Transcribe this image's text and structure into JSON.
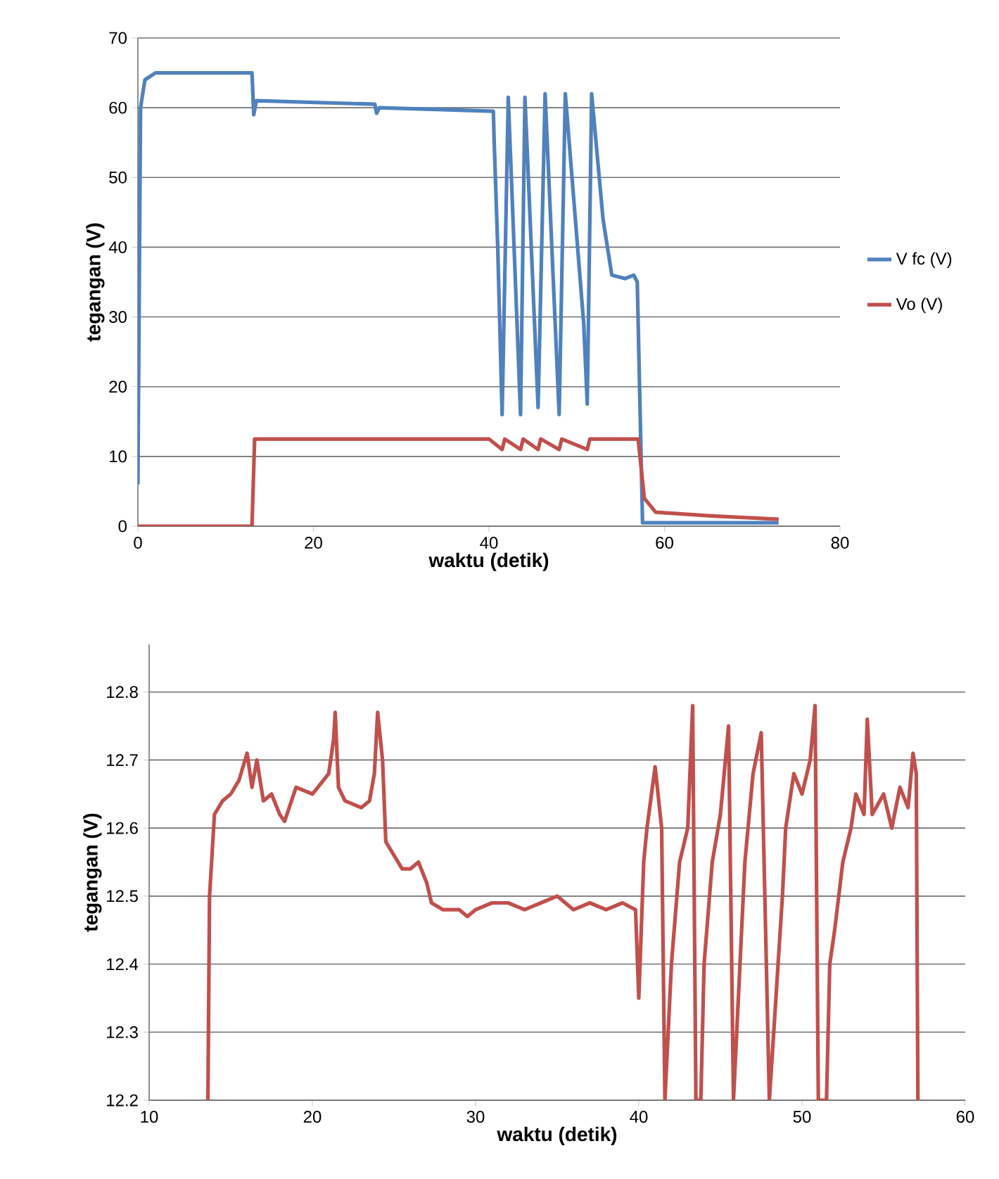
{
  "chart_data": [
    {
      "type": "line",
      "xlabel": "waktu (detik)",
      "ylabel": "tegangan (V)",
      "xlim": [
        0,
        80
      ],
      "ylim": [
        0,
        70
      ],
      "xticks": [
        0,
        20,
        40,
        60,
        80
      ],
      "yticks": [
        0,
        10,
        20,
        30,
        40,
        50,
        60,
        70
      ],
      "grid": "y",
      "legend": "right",
      "series": [
        {
          "name": "V fc (V)",
          "color": "#4f81bd",
          "x": [
            0,
            0.3,
            0.8,
            2,
            13,
            13.2,
            13.5,
            27,
            27.2,
            27.5,
            40.5,
            40.6,
            41,
            41.5,
            42.2,
            43.6,
            44.1,
            45.6,
            46.4,
            48.0,
            48.7,
            50.8,
            51.2,
            51.7,
            53,
            54,
            55.5,
            56.5,
            56.9,
            57.5,
            73
          ],
          "values": [
            6,
            60,
            64,
            65,
            65,
            59,
            61,
            60.5,
            59.2,
            60,
            59.5,
            55,
            40,
            16,
            61.5,
            16,
            61.5,
            17,
            62,
            16,
            62,
            29,
            17.5,
            62,
            44,
            36,
            35.5,
            36,
            35,
            0.5,
            0.5
          ]
        },
        {
          "name": "Vo (V)",
          "color": "#c0504d",
          "x": [
            0,
            13,
            13.3,
            40,
            41.5,
            41.8,
            43.6,
            43.9,
            45.6,
            45.9,
            48,
            48.3,
            51.2,
            51.5,
            57,
            57.7,
            59,
            65,
            73
          ],
          "values": [
            0,
            0,
            12.5,
            12.5,
            11,
            12.5,
            11,
            12.5,
            11,
            12.5,
            11,
            12.5,
            11,
            12.5,
            12.5,
            4,
            2,
            1.5,
            1
          ]
        }
      ]
    },
    {
      "type": "line",
      "xlabel": "waktu (detik)",
      "ylabel": "tegangan (V)",
      "xlim": [
        10,
        60
      ],
      "ylim": [
        12.2,
        12.87
      ],
      "xticks": [
        10,
        20,
        30,
        40,
        50,
        60
      ],
      "yticks": [
        12.2,
        12.3,
        12.4,
        12.5,
        12.6,
        12.7,
        12.8
      ],
      "grid": "y",
      "series": [
        {
          "color": "#c0504d",
          "x": [
            13.6,
            13.7,
            14,
            14.5,
            15,
            15.5,
            16,
            16.3,
            16.6,
            17,
            17.5,
            18,
            18.3,
            19,
            20,
            21,
            21.3,
            21.4,
            21.6,
            22,
            23,
            23.5,
            23.8,
            24,
            24.3,
            24.5,
            25,
            25.5,
            26,
            26.5,
            27,
            27.3,
            28,
            29,
            29.5,
            30,
            31,
            32,
            33,
            34,
            35,
            36,
            37,
            38,
            39,
            39.8,
            40,
            40.3,
            40.5,
            41,
            41.4,
            41.6,
            42,
            42.5,
            43,
            43.3,
            43.5,
            43.8,
            44,
            44.5,
            45,
            45.5,
            45.8,
            46.2,
            46.5,
            47,
            47.5,
            48,
            48.4,
            48.8,
            49,
            49.5,
            50,
            50.5,
            50.8,
            51,
            51.5,
            51.7,
            52,
            52.5,
            53,
            53.3,
            53.8,
            54,
            54.3,
            55,
            55.5,
            56,
            56.5,
            56.8,
            57,
            57.1
          ],
          "values": [
            12.2,
            12.5,
            12.62,
            12.64,
            12.65,
            12.67,
            12.71,
            12.66,
            12.7,
            12.64,
            12.65,
            12.62,
            12.61,
            12.66,
            12.65,
            12.68,
            12.73,
            12.77,
            12.66,
            12.64,
            12.63,
            12.64,
            12.68,
            12.77,
            12.7,
            12.58,
            12.56,
            12.54,
            12.54,
            12.55,
            12.52,
            12.49,
            12.48,
            12.48,
            12.47,
            12.48,
            12.49,
            12.49,
            12.48,
            12.49,
            12.5,
            12.48,
            12.49,
            12.48,
            12.49,
            12.48,
            12.35,
            12.55,
            12.6,
            12.69,
            12.6,
            12.2,
            12.4,
            12.55,
            12.6,
            12.78,
            12.2,
            12.2,
            12.4,
            12.55,
            12.62,
            12.75,
            12.2,
            12.4,
            12.55,
            12.68,
            12.74,
            12.2,
            12.35,
            12.5,
            12.6,
            12.68,
            12.65,
            12.7,
            12.78,
            12.2,
            12.2,
            12.4,
            12.45,
            12.55,
            12.6,
            12.65,
            12.62,
            12.76,
            12.62,
            12.65,
            12.6,
            12.66,
            12.63,
            12.71,
            12.68,
            12.2
          ]
        }
      ]
    }
  ]
}
